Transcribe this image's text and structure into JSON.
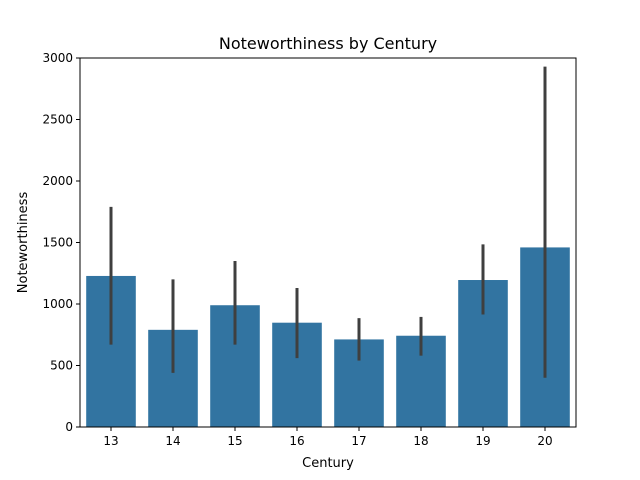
{
  "chart_data": {
    "type": "bar",
    "title": "Noteworthiness by Century",
    "xlabel": "Century",
    "ylabel": "Noteworthiness",
    "categories": [
      "13",
      "14",
      "15",
      "16",
      "17",
      "18",
      "19",
      "20"
    ],
    "values": [
      1228,
      790,
      990,
      848,
      712,
      742,
      1195,
      1460
    ],
    "error_bars": [
      [
        670,
        1790
      ],
      [
        440,
        1200
      ],
      [
        670,
        1350
      ],
      [
        560,
        1130
      ],
      [
        540,
        885
      ],
      [
        580,
        895
      ],
      [
        915,
        1485
      ],
      [
        400,
        2930
      ]
    ],
    "ylim": [
      0,
      3000
    ],
    "yticks": [
      0,
      500,
      1000,
      1500,
      2000,
      2500,
      3000
    ],
    "bar_color": "#3274a1",
    "error_color": "#3f3f3f",
    "grid": false,
    "legend": "none"
  }
}
